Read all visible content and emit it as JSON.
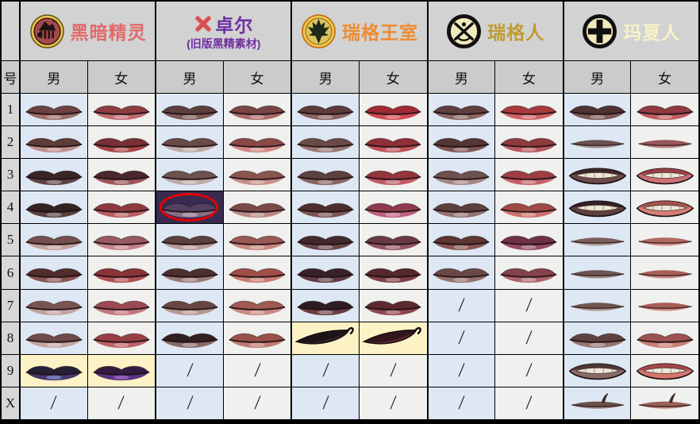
{
  "header": {
    "groups": [
      {
        "icon": "dark-elf-faction-icon",
        "title": "黑暗精灵",
        "title_color": "#e06a6a"
      },
      {
        "icon": "red-x-icon",
        "title": "卓尔",
        "subtitle": "(旧版黑精素材)",
        "title_color": "#7030a0",
        "subtitle_color": "#7030a0",
        "x_color": "#d94f4f"
      },
      {
        "icon": "rigg-royal-faction-icon",
        "title": "瑞格王室",
        "title_color": "#ef8b31"
      },
      {
        "icon": "rigg-faction-icon",
        "title": "瑞格人",
        "title_color": "#bf9b30"
      },
      {
        "icon": "masha-faction-icon",
        "title": "玛夏人",
        "title_color": "#f7f2c8"
      }
    ]
  },
  "subheader": {
    "corner": "号",
    "male": "男",
    "female": "女"
  },
  "slash": "/",
  "cell_bg": {
    "header": "#d2d2d2",
    "subheader": "#cbcbcb",
    "row_label": "#d7d7d7",
    "male": "#dde8f4",
    "female": "#f0f0ee",
    "yellow_highlight": "#fdf2c5",
    "dark_highlight": "#392a50",
    "highlight_ring": "#e60000"
  },
  "rows": [
    {
      "label": "1",
      "cells": [
        {
          "s": "full",
          "u": "#6b4240",
          "l": "#9c6b66"
        },
        {
          "s": "full",
          "u": "#8e3c40",
          "l": "#c06a6e"
        },
        {
          "s": "full",
          "u": "#5c3f3d",
          "l": "#7d5a56"
        },
        {
          "s": "full",
          "u": "#7a4644",
          "l": "#a86a64"
        },
        {
          "s": "full",
          "u": "#5c3b3a",
          "l": "#8a625e"
        },
        {
          "s": "full",
          "u": "#a02a32",
          "l": "#d04a52"
        },
        {
          "s": "full",
          "u": "#5e403e",
          "l": "#8c6662"
        },
        {
          "s": "full",
          "u": "#a83a3e",
          "l": "#d06064"
        },
        {
          "s": "full",
          "u": "#4e3234",
          "l": "#7c5a58"
        },
        {
          "s": "full",
          "u": "#8e3a40",
          "l": "#c05c62"
        }
      ]
    },
    {
      "label": "2",
      "cells": [
        {
          "s": "full",
          "u": "#5e3c38",
          "l": "#c08d8a"
        },
        {
          "s": "full",
          "u": "#7a3034",
          "l": "#a84448"
        },
        {
          "s": "full",
          "u": "#6a4a46",
          "l": "#c0a8a4"
        },
        {
          "s": "full",
          "u": "#8a4a46",
          "l": "#d08880"
        },
        {
          "s": "full",
          "u": "#6a4a48",
          "l": "#9a7672"
        },
        {
          "s": "full",
          "u": "#8e3038",
          "l": "#c05058"
        },
        {
          "s": "full",
          "u": "#543634",
          "l": "#7e5652"
        },
        {
          "s": "full",
          "u": "#8e3a40",
          "l": "#b8585e"
        },
        {
          "s": "thin",
          "u": "#6a5250",
          "l": "#a08a86"
        },
        {
          "s": "thin",
          "u": "#96565a",
          "l": "#bc8084"
        }
      ]
    },
    {
      "label": "3",
      "cells": [
        {
          "s": "full",
          "u": "#3a2526",
          "l": "#5e4344"
        },
        {
          "s": "full",
          "u": "#4a282c",
          "l": "#a05458"
        },
        {
          "s": "full",
          "u": "#6e524e",
          "l": "#c0a8a8"
        },
        {
          "s": "full",
          "u": "#8a5550",
          "l": "#c69089"
        },
        {
          "s": "full",
          "u": "#5e403e",
          "l": "#8a6360"
        },
        {
          "s": "full",
          "u": "#94343c",
          "l": "#c25a64"
        },
        {
          "s": "full",
          "u": "#6e504e",
          "l": "#a88684"
        },
        {
          "s": "full",
          "u": "#9e3e44",
          "l": "#c66066"
        },
        {
          "s": "grin",
          "u": "#3a2628",
          "l": "#6a4a48"
        },
        {
          "s": "grin",
          "u": "#9a4046",
          "l": "#cc7076"
        }
      ]
    },
    {
      "label": "4",
      "cells": [
        {
          "s": "full",
          "u": "#332222",
          "l": "#5a4140"
        },
        {
          "s": "full",
          "u": "#8c3a3e",
          "l": "#bc5a60"
        },
        {
          "s": "full",
          "u": "#544060",
          "l": "#8a6e88",
          "bg": "d",
          "ring": true
        },
        {
          "s": "full",
          "u": "#7a4a46",
          "l": "#b88a82"
        },
        {
          "s": "full",
          "u": "#4c2e2c",
          "l": "#7a5450"
        },
        {
          "s": "full",
          "u": "#8e3a4e",
          "l": "#c06080"
        },
        {
          "s": "full",
          "u": "#5c403e",
          "l": "#95726e"
        },
        {
          "s": "full",
          "u": "#a04a46",
          "l": "#cc726a"
        },
        {
          "s": "grin",
          "u": "#302024",
          "l": "#5c403e"
        },
        {
          "s": "grin",
          "u": "#a4524e",
          "l": "#d47e76"
        }
      ]
    },
    {
      "label": "5",
      "cells": [
        {
          "s": "full",
          "u": "#75504e",
          "l": "#c4a09c"
        },
        {
          "s": "full",
          "u": "#985a60",
          "l": "#c58288"
        },
        {
          "s": "full",
          "u": "#5a403e",
          "l": "#b89a96"
        },
        {
          "s": "full",
          "u": "#9a5a54",
          "l": "#c8867e"
        },
        {
          "s": "full",
          "u": "#422a2c",
          "l": "#6a4648"
        },
        {
          "s": "full",
          "u": "#6a3a44",
          "l": "#93555f"
        },
        {
          "s": "full",
          "u": "#5e3634",
          "l": "#8a5450"
        },
        {
          "s": "full",
          "u": "#6e3048",
          "l": "#944a64"
        },
        {
          "s": "thin",
          "u": "#7a605c",
          "l": "#b09a94"
        },
        {
          "s": "thin",
          "u": "#b06860",
          "l": "#d49088"
        }
      ]
    },
    {
      "label": "6",
      "cells": [
        {
          "s": "full",
          "u": "#502e2c",
          "l": "#8a5350"
        },
        {
          "s": "full",
          "u": "#8a3438",
          "l": "#b04e52"
        },
        {
          "s": "full",
          "u": "#4a302e",
          "l": "#9a7a76"
        },
        {
          "s": "full",
          "u": "#a04e48",
          "l": "#c87a70"
        },
        {
          "s": "full",
          "u": "#38222a",
          "l": "#5e3c42"
        },
        {
          "s": "full",
          "u": "#55282e",
          "l": "#7e3e46"
        },
        {
          "s": "full",
          "u": "#6a4846",
          "l": "#96706c"
        },
        {
          "s": "full",
          "u": "#84424a",
          "l": "#ae646c"
        },
        {
          "s": "thin",
          "u": "#6e5452",
          "l": "#a08680"
        },
        {
          "s": "thin",
          "u": "#a86058",
          "l": "#cc8880"
        }
      ]
    },
    {
      "label": "7",
      "cells": [
        {
          "s": "full",
          "u": "#7a5450",
          "l": "#c2a29e"
        },
        {
          "s": "full",
          "u": "#9a4a50",
          "l": "#c4767c"
        },
        {
          "s": "full",
          "u": "#6a4642",
          "l": "#b89690"
        },
        {
          "s": "full",
          "u": "#a05a52",
          "l": "#ca8a80"
        },
        {
          "s": "full",
          "u": "#2e1c22",
          "l": "#6a3e44"
        },
        {
          "s": "full",
          "u": "#5c2a30",
          "l": "#8e444c"
        },
        null,
        null,
        {
          "s": "thin",
          "u": "#705650",
          "l": "#a8908a"
        },
        {
          "s": "thin",
          "u": "#a85e56",
          "l": "#ce867e"
        }
      ]
    },
    {
      "label": "8",
      "cells": [
        {
          "s": "full",
          "u": "#6e4a48",
          "l": "#c5a4a2"
        },
        {
          "s": "full",
          "u": "#973f44",
          "l": "#bd6166"
        },
        {
          "s": "full",
          "u": "#302020",
          "l": "#8a6a66"
        },
        {
          "s": "full",
          "u": "#985048",
          "l": "#c07a72"
        },
        {
          "s": "smirk",
          "u": "#1c1418",
          "l": "#3a2a30",
          "bg": "y"
        },
        {
          "s": "smirk",
          "u": "#33151c",
          "l": "#6e2a38",
          "bg": "y"
        },
        null,
        null,
        {
          "s": "full",
          "u": "#5e4242",
          "l": "#967472"
        },
        {
          "s": "full",
          "u": "#9c524e",
          "l": "#c87e76"
        }
      ]
    },
    {
      "label": "9",
      "cells": [
        {
          "s": "full",
          "u": "#232036",
          "l": "#46386a",
          "bg": "y",
          "h": "#8ea6ee"
        },
        {
          "s": "full",
          "u": "#321c40",
          "l": "#5c3383",
          "bg": "y",
          "h": "#b478e0"
        },
        null,
        null,
        null,
        null,
        null,
        null,
        {
          "s": "grin",
          "u": "#4e3634",
          "l": "#8a6a66"
        },
        {
          "s": "grin",
          "u": "#a4464a",
          "l": "#d4766e"
        }
      ]
    },
    {
      "label": "X",
      "cells": [
        null,
        null,
        null,
        null,
        null,
        null,
        null,
        null,
        {
          "s": "spike",
          "u": "#685048",
          "l": "#9c8078"
        },
        {
          "s": "spike",
          "u": "#9a6058",
          "l": "#c48880"
        }
      ]
    }
  ],
  "chart_data": {
    "type": "table",
    "title": "口型/嘴唇素材对照表 (lip texture comparison by faction and gender)",
    "columns": [
      "号",
      "黑暗精灵-男",
      "黑暗精灵-女",
      "卓尔-男",
      "卓尔-女",
      "瑞格王室-男",
      "瑞格王室-女",
      "瑞格人-男",
      "瑞格人-女",
      "玛夏人-男",
      "玛夏人-女"
    ],
    "rows": [
      [
        "1",
        "lip",
        "lip",
        "lip",
        "lip",
        "lip",
        "lip",
        "lip",
        "lip",
        "lip",
        "lip"
      ],
      [
        "2",
        "lip",
        "lip",
        "lip",
        "lip",
        "lip",
        "lip",
        "lip",
        "lip",
        "lip",
        "lip"
      ],
      [
        "3",
        "lip",
        "lip",
        "lip",
        "lip",
        "lip",
        "lip",
        "lip",
        "lip",
        "lip",
        "lip"
      ],
      [
        "4",
        "lip",
        "lip",
        "lip-circled-red",
        "lip",
        "lip",
        "lip",
        "lip",
        "lip",
        "lip",
        "lip"
      ],
      [
        "5",
        "lip",
        "lip",
        "lip",
        "lip",
        "lip",
        "lip",
        "lip",
        "lip",
        "lip",
        "lip"
      ],
      [
        "6",
        "lip",
        "lip",
        "lip",
        "lip",
        "lip",
        "lip",
        "lip",
        "lip",
        "lip",
        "lip"
      ],
      [
        "7",
        "lip",
        "lip",
        "lip",
        "lip",
        "lip",
        "lip",
        "/",
        "/",
        "lip",
        "lip"
      ],
      [
        "8",
        "lip",
        "lip",
        "lip",
        "lip",
        "lip-yellow-highlight",
        "lip-yellow-highlight",
        "/",
        "/",
        "lip",
        "lip"
      ],
      [
        "9",
        "lip-yellow-highlight",
        "lip-yellow-highlight",
        "/",
        "/",
        "/",
        "/",
        "/",
        "/",
        "lip",
        "lip"
      ],
      [
        "X",
        "/",
        "/",
        "/",
        "/",
        "/",
        "/",
        "/",
        "/",
        "lip",
        "lip"
      ]
    ],
    "legend_notes": [
      "male columns have light blue background",
      "female columns have off-white background",
      "yellow cells and the red-circled dark cell mark special entries",
      "/ means no asset"
    ]
  }
}
